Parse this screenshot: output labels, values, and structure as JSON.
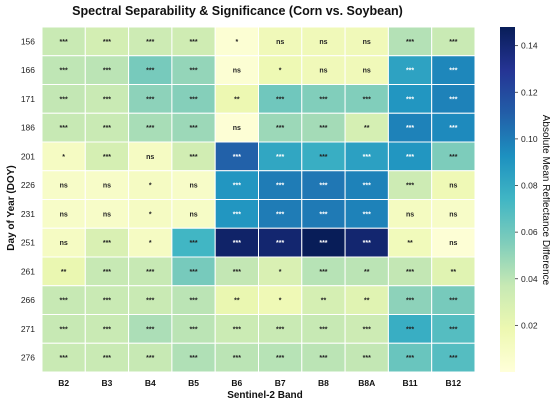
{
  "chart_data": {
    "type": "heatmap",
    "title": "Spectral Separability & Significance (Corn vs. Soybean)",
    "xlabel": "Sentinel-2 Band",
    "ylabel": "Day of Year (DOY)",
    "x_categories": [
      "B2",
      "B3",
      "B4",
      "B5",
      "B6",
      "B7",
      "B8",
      "B8A",
      "B11",
      "B12"
    ],
    "y_categories": [
      "156",
      "166",
      "171",
      "186",
      "201",
      "226",
      "231",
      "251",
      "261",
      "266",
      "271",
      "276"
    ],
    "values": [
      [
        0.036,
        0.031,
        0.034,
        0.033,
        0.003,
        0.015,
        0.015,
        0.015,
        0.042,
        0.036
      ],
      [
        0.039,
        0.04,
        0.058,
        0.05,
        0.003,
        0.017,
        0.015,
        0.015,
        0.084,
        0.096
      ],
      [
        0.038,
        0.036,
        0.052,
        0.054,
        0.018,
        0.06,
        0.055,
        0.055,
        0.09,
        0.098
      ],
      [
        0.037,
        0.036,
        0.045,
        0.048,
        0.002,
        0.048,
        0.046,
        0.03,
        0.098,
        0.095
      ],
      [
        0.01,
        0.03,
        0.01,
        0.032,
        0.11,
        0.082,
        0.078,
        0.085,
        0.09,
        0.056
      ],
      [
        0.008,
        0.008,
        0.01,
        0.008,
        0.09,
        0.1,
        0.102,
        0.098,
        0.034,
        0.016
      ],
      [
        0.008,
        0.008,
        0.01,
        0.009,
        0.09,
        0.1,
        0.101,
        0.098,
        0.011,
        0.008
      ],
      [
        0.01,
        0.028,
        0.01,
        0.074,
        0.143,
        0.141,
        0.148,
        0.141,
        0.014,
        0.002
      ],
      [
        0.02,
        0.037,
        0.037,
        0.058,
        0.038,
        0.028,
        0.041,
        0.04,
        0.038,
        0.025
      ],
      [
        0.037,
        0.036,
        0.036,
        0.04,
        0.02,
        0.016,
        0.03,
        0.025,
        0.052,
        0.058
      ],
      [
        0.037,
        0.036,
        0.044,
        0.04,
        0.035,
        0.036,
        0.037,
        0.034,
        0.078,
        0.068
      ],
      [
        0.036,
        0.036,
        0.037,
        0.043,
        0.04,
        0.041,
        0.04,
        0.038,
        0.062,
        0.068
      ]
    ],
    "significance": [
      [
        "***",
        "***",
        "***",
        "***",
        "*",
        "ns",
        "ns",
        "ns",
        "***",
        "***"
      ],
      [
        "***",
        "***",
        "***",
        "***",
        "ns",
        "*",
        "ns",
        "ns",
        "***",
        "***"
      ],
      [
        "***",
        "***",
        "***",
        "***",
        "**",
        "***",
        "***",
        "***",
        "***",
        "***"
      ],
      [
        "***",
        "***",
        "***",
        "***",
        "ns",
        "***",
        "***",
        "**",
        "***",
        "***"
      ],
      [
        "*",
        "***",
        "ns",
        "***",
        "***",
        "***",
        "***",
        "***",
        "***",
        "***"
      ],
      [
        "ns",
        "ns",
        "*",
        "ns",
        "***",
        "***",
        "***",
        "***",
        "***",
        "ns"
      ],
      [
        "ns",
        "ns",
        "*",
        "ns",
        "***",
        "***",
        "***",
        "***",
        "ns",
        "ns"
      ],
      [
        "ns",
        "***",
        "*",
        "***",
        "***",
        "***",
        "***",
        "***",
        "**",
        "ns"
      ],
      [
        "**",
        "***",
        "***",
        "***",
        "***",
        "*",
        "***",
        "**",
        "***",
        "**"
      ],
      [
        "***",
        "***",
        "***",
        "***",
        "**",
        "*",
        "**",
        "**",
        "***",
        "***"
      ],
      [
        "***",
        "***",
        "***",
        "***",
        "***",
        "***",
        "***",
        "***",
        "***",
        "***"
      ],
      [
        "***",
        "***",
        "***",
        "***",
        "***",
        "***",
        "***",
        "***",
        "***",
        "***"
      ]
    ],
    "colorbar": {
      "label": "Absolute Mean Reflectance Difference",
      "min": 0.0,
      "max": 0.148,
      "ticks": [
        0.02,
        0.04,
        0.06,
        0.08,
        0.1,
        0.12,
        0.14
      ],
      "tick_labels": [
        "0.02",
        "0.04",
        "0.06",
        "0.08",
        "0.10",
        "0.12",
        "0.14"
      ],
      "colormap": "YlGnBu",
      "color_stops": [
        "#ffffd9",
        "#edf8b1",
        "#c7e9b4",
        "#7fcdbb",
        "#41b6c4",
        "#1d91c0",
        "#225ea8",
        "#253494",
        "#081d58"
      ]
    },
    "grid": false,
    "legend": "colorbar-right"
  }
}
